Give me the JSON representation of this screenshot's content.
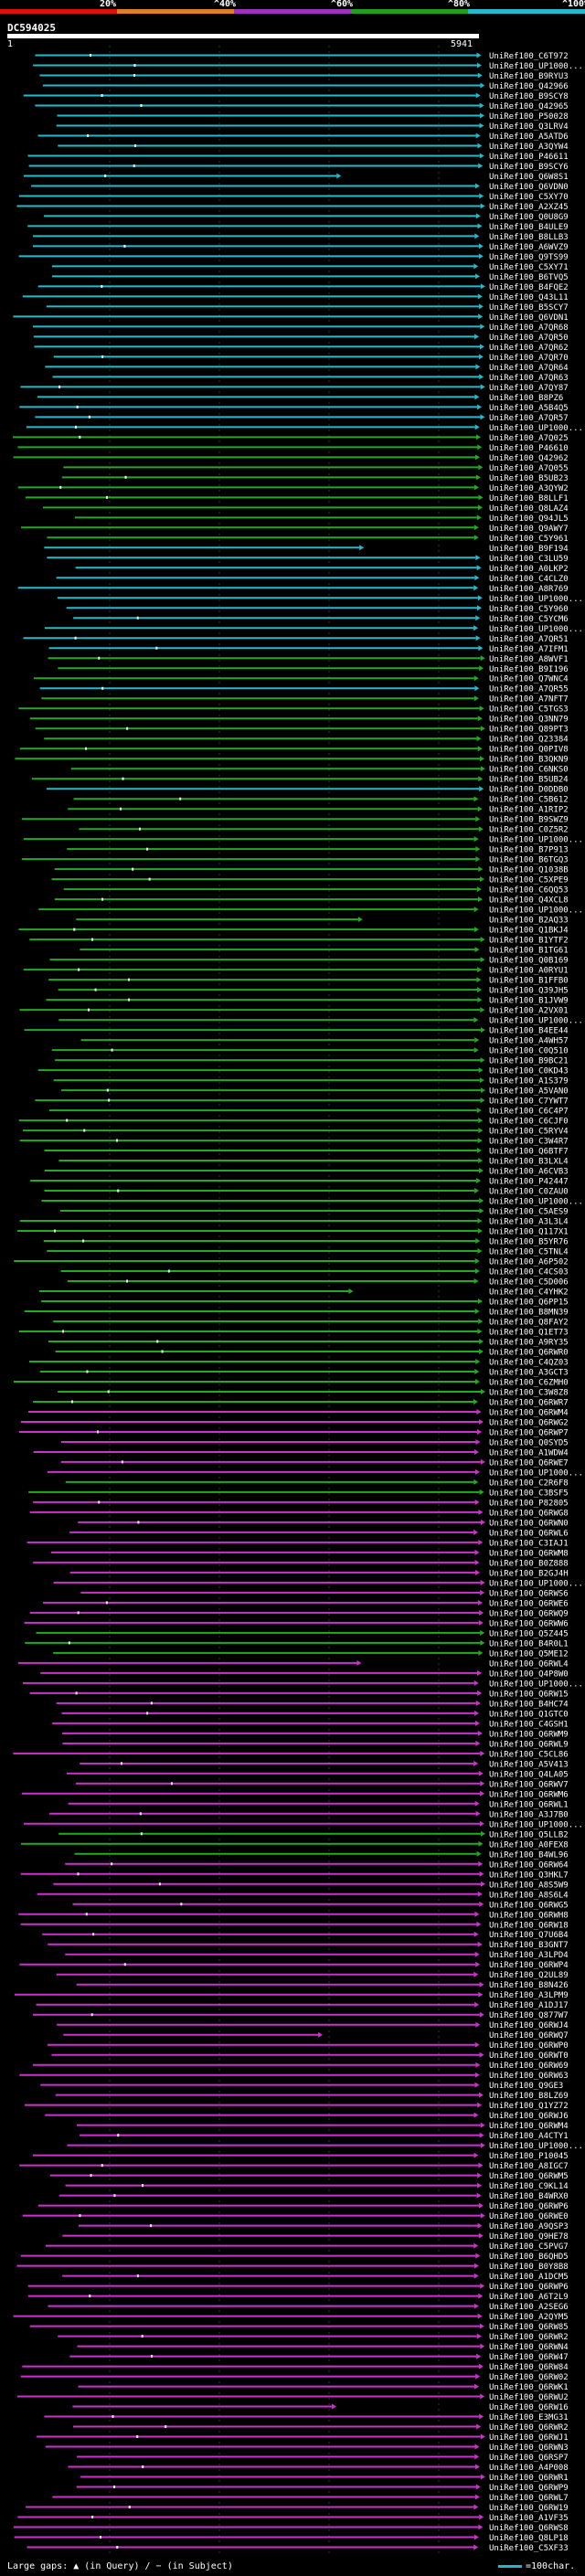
{
  "query": {
    "name": "DC594025",
    "start": "1",
    "end": "5941"
  },
  "scale": [
    {
      "label": "20%",
      "color": "#e01010"
    },
    {
      "label": "^40%",
      "color": "#e08020"
    },
    {
      "label": "^60%",
      "color": "#a030c0"
    },
    {
      "label": "^80%",
      "color": "#20a020"
    },
    {
      "label": "^100%",
      "color": "#22bbcc"
    }
  ],
  "colors": {
    "cyan": "#22bbcc",
    "green": "#22aa22",
    "magenta": "#cc33cc",
    "label": "#ffffff"
  },
  "hits": [
    {
      "id": "UniRef100_C6T972",
      "color": "cyan"
    },
    {
      "id": "UniRef100_UP1000...",
      "color": "cyan"
    },
    {
      "id": "UniRef100_B9RYU3",
      "color": "cyan"
    },
    {
      "id": "UniRef100_Q42966",
      "color": "cyan"
    },
    {
      "id": "UniRef100_B9SCY8",
      "color": "cyan"
    },
    {
      "id": "UniRef100_Q42965",
      "color": "cyan"
    },
    {
      "id": "UniRef100_P50028",
      "color": "cyan"
    },
    {
      "id": "UniRef100_Q3LRV4",
      "color": "cyan"
    },
    {
      "id": "UniRef100_A5ATD6",
      "color": "cyan"
    },
    {
      "id": "UniRef100_A3QYW4",
      "color": "cyan"
    },
    {
      "id": "UniRef100_P46611",
      "color": "cyan"
    },
    {
      "id": "UniRef100_B9SCY6",
      "color": "cyan"
    },
    {
      "id": "UniRef100_Q6W8S1",
      "color": "cyan"
    },
    {
      "id": "UniRef100_Q6VDN0",
      "color": "cyan"
    },
    {
      "id": "UniRef100_C5XY70",
      "color": "cyan"
    },
    {
      "id": "UniRef100_A2XZ45",
      "color": "cyan"
    },
    {
      "id": "UniRef100_Q0U8G9",
      "color": "cyan"
    },
    {
      "id": "UniRef100_B4ULE9",
      "color": "cyan"
    },
    {
      "id": "UniRef100_B8LLB3",
      "color": "cyan"
    },
    {
      "id": "UniRef100_A6WVZ9",
      "color": "cyan"
    },
    {
      "id": "UniRef100_Q9TS99",
      "color": "cyan"
    },
    {
      "id": "UniRef100_C5XY71",
      "color": "cyan"
    },
    {
      "id": "UniRef100_B6TVQ5",
      "color": "cyan"
    },
    {
      "id": "UniRef100_B4FQE2",
      "color": "cyan"
    },
    {
      "id": "UniRef100_Q43L11",
      "color": "cyan"
    },
    {
      "id": "UniRef100_B5SCY7",
      "color": "cyan"
    },
    {
      "id": "UniRef100_Q6VDN1",
      "color": "cyan"
    },
    {
      "id": "UniRef100_A7QR68",
      "color": "cyan"
    },
    {
      "id": "UniRef100_A7QR50",
      "color": "cyan"
    },
    {
      "id": "UniRef100_A7QR62",
      "color": "cyan"
    },
    {
      "id": "UniRef100_A7QR70",
      "color": "cyan"
    },
    {
      "id": "UniRef100_A7QR64",
      "color": "cyan"
    },
    {
      "id": "UniRef100_A7QR63",
      "color": "cyan"
    },
    {
      "id": "UniRef100_A7QY87",
      "color": "cyan"
    },
    {
      "id": "UniRef100_B8PZ6",
      "color": "cyan"
    },
    {
      "id": "UniRef100_A5B4Q5",
      "color": "cyan"
    },
    {
      "id": "UniRef100_A7QR57",
      "color": "cyan"
    },
    {
      "id": "UniRef100_UP1000...",
      "color": "cyan"
    },
    {
      "id": "UniRef100_A7Q025",
      "color": "green"
    },
    {
      "id": "UniRef100_P46610",
      "color": "green"
    },
    {
      "id": "UniRef100_Q42962",
      "color": "green"
    },
    {
      "id": "UniRef100_A7Q055",
      "color": "green"
    },
    {
      "id": "UniRef100_B5UB23",
      "color": "green"
    },
    {
      "id": "UniRef100_A3QYW2",
      "color": "green"
    },
    {
      "id": "UniRef100_B8LLF1",
      "color": "green"
    },
    {
      "id": "UniRef100_Q8LAZ4",
      "color": "green"
    },
    {
      "id": "UniRef100_Q94JL5",
      "color": "green"
    },
    {
      "id": "UniRef100_Q9AWY7",
      "color": "green"
    },
    {
      "id": "UniRef100_C5Y961",
      "color": "green"
    },
    {
      "id": "UniRef100_B9F194",
      "color": "cyan"
    },
    {
      "id": "UniRef100_C3LU59",
      "color": "cyan"
    },
    {
      "id": "UniRef100_A0LKP2",
      "color": "cyan"
    },
    {
      "id": "UniRef100_C4CLZ0",
      "color": "cyan"
    },
    {
      "id": "UniRef100_A8R769",
      "color": "cyan"
    },
    {
      "id": "UniRef100_UP1000...",
      "color": "cyan"
    },
    {
      "id": "UniRef100_C5Y960",
      "color": "cyan"
    },
    {
      "id": "UniRef100_C5YCM6",
      "color": "cyan"
    },
    {
      "id": "UniRef100_UP1000...",
      "color": "cyan"
    },
    {
      "id": "UniRef100_A7QR51",
      "color": "cyan"
    },
    {
      "id": "UniRef100_A7IFM1",
      "color": "cyan"
    },
    {
      "id": "UniRef100_A8WVF1",
      "color": "green"
    },
    {
      "id": "UniRef100_B9I196",
      "color": "green"
    },
    {
      "id": "UniRef100_Q7WNC4",
      "color": "green"
    },
    {
      "id": "UniRef100_A7QR55",
      "color": "cyan"
    },
    {
      "id": "UniRef100_A7NFT7",
      "color": "green"
    },
    {
      "id": "UniRef100_C5TGS3",
      "color": "green"
    },
    {
      "id": "UniRef100_Q3NN79",
      "color": "green"
    },
    {
      "id": "UniRef100_Q89PT3",
      "color": "green"
    },
    {
      "id": "UniRef100_Q23384",
      "color": "green"
    },
    {
      "id": "UniRef100_Q0PIV8",
      "color": "green"
    },
    {
      "id": "UniRef100_B3QKN9",
      "color": "green"
    },
    {
      "id": "UniRef100_C6NKS0",
      "color": "green"
    },
    {
      "id": "UniRef100_B5UB24",
      "color": "green"
    },
    {
      "id": "UniRef100_D0DDB0",
      "color": "cyan"
    },
    {
      "id": "UniRef100_C5B612",
      "color": "green"
    },
    {
      "id": "UniRef100_A1RIP2",
      "color": "green"
    },
    {
      "id": "UniRef100_B9SWZ9",
      "color": "green"
    },
    {
      "id": "UniRef100_C0Z5R2",
      "color": "green"
    },
    {
      "id": "UniRef100_UP1000...",
      "color": "green"
    },
    {
      "id": "UniRef100_B7P913",
      "color": "green"
    },
    {
      "id": "UniRef100_B6TGQ3",
      "color": "green"
    },
    {
      "id": "UniRef100_Q1038B",
      "color": "green"
    },
    {
      "id": "UniRef100_C5XPE9",
      "color": "green"
    },
    {
      "id": "UniRef100_C6QQ53",
      "color": "green"
    },
    {
      "id": "UniRef100_Q4XCL8",
      "color": "green"
    },
    {
      "id": "UniRef100_UP1000...",
      "color": "green"
    },
    {
      "id": "UniRef100_B2AQ33",
      "color": "green"
    },
    {
      "id": "UniRef100_Q1BKJ4",
      "color": "green"
    },
    {
      "id": "UniRef100_B1YTF2",
      "color": "green"
    },
    {
      "id": "UniRef100_B1TG61",
      "color": "green"
    },
    {
      "id": "UniRef100_Q0B169",
      "color": "green"
    },
    {
      "id": "UniRef100_A0RYU1",
      "color": "green"
    },
    {
      "id": "UniRef100_B1FFB0",
      "color": "green"
    },
    {
      "id": "UniRef100_Q39JH5",
      "color": "green"
    },
    {
      "id": "UniRef100_B1JVW9",
      "color": "green"
    },
    {
      "id": "UniRef100_A2VX01",
      "color": "green"
    },
    {
      "id": "UniRef100_UP1000...",
      "color": "green"
    },
    {
      "id": "UniRef100_B4EE44",
      "color": "green"
    },
    {
      "id": "UniRef100_A4WH57",
      "color": "green"
    },
    {
      "id": "UniRef100_C0Q510",
      "color": "green"
    },
    {
      "id": "UniRef100_B9BC21",
      "color": "green"
    },
    {
      "id": "UniRef100_C0KD43",
      "color": "green"
    },
    {
      "id": "UniRef100_A1S379",
      "color": "green"
    },
    {
      "id": "UniRef100_A5VAN0",
      "color": "green"
    },
    {
      "id": "UniRef100_C7YWT7",
      "color": "green"
    },
    {
      "id": "UniRef100_C6C4P7",
      "color": "green"
    },
    {
      "id": "UniRef100_C6CJF0",
      "color": "green"
    },
    {
      "id": "UniRef100_C5RYV4",
      "color": "green"
    },
    {
      "id": "UniRef100_C3W4R7",
      "color": "green"
    },
    {
      "id": "UniRef100_Q6BTF7",
      "color": "green"
    },
    {
      "id": "UniRef100_B3LXL4",
      "color": "green"
    },
    {
      "id": "UniRef100_A6CVB3",
      "color": "green"
    },
    {
      "id": "UniRef100_P42447",
      "color": "green"
    },
    {
      "id": "UniRef100_C0ZAU0",
      "color": "green"
    },
    {
      "id": "UniRef100_UP1000...",
      "color": "green"
    },
    {
      "id": "UniRef100_C5AES9",
      "color": "green"
    },
    {
      "id": "UniRef100_A3L3L4",
      "color": "green"
    },
    {
      "id": "UniRef100_Q117X1",
      "color": "green"
    },
    {
      "id": "UniRef100_B5YR76",
      "color": "green"
    },
    {
      "id": "UniRef100_C5TNL4",
      "color": "green"
    },
    {
      "id": "UniRef100_A6P502",
      "color": "green"
    },
    {
      "id": "UniRef100_C4CS03",
      "color": "green"
    },
    {
      "id": "UniRef100_C5D006",
      "color": "green"
    },
    {
      "id": "UniRef100_C4YHK2",
      "color": "green"
    },
    {
      "id": "UniRef100_Q6PP15",
      "color": "green"
    },
    {
      "id": "UniRef100_B8MN39",
      "color": "green"
    },
    {
      "id": "UniRef100_Q8FAY2",
      "color": "green"
    },
    {
      "id": "UniRef100_Q1ET73",
      "color": "green"
    },
    {
      "id": "UniRef100_A9RY35",
      "color": "green"
    },
    {
      "id": "UniRef100_Q6RWR0",
      "color": "green"
    },
    {
      "id": "UniRef100_C4QZ03",
      "color": "green"
    },
    {
      "id": "UniRef100_A3GCT3",
      "color": "green"
    },
    {
      "id": "UniRef100_C6ZMH0",
      "color": "green"
    },
    {
      "id": "UniRef100_C3W8Z8",
      "color": "green"
    },
    {
      "id": "UniRef100_Q6RWR7",
      "color": "green"
    },
    {
      "id": "UniRef100_Q6RWM4",
      "color": "magenta"
    },
    {
      "id": "UniRef100_Q6RWG2",
      "color": "magenta"
    },
    {
      "id": "UniRef100_Q6RWP7",
      "color": "magenta"
    },
    {
      "id": "UniRef100_Q0SYD5",
      "color": "magenta"
    },
    {
      "id": "UniRef100_A1WDW4",
      "color": "magenta"
    },
    {
      "id": "UniRef100_Q6RWE7",
      "color": "magenta"
    },
    {
      "id": "UniRef100_UP1000...",
      "color": "magenta"
    },
    {
      "id": "UniRef100_C2R6F8",
      "color": "green"
    },
    {
      "id": "UniRef100_C3BSF5",
      "color": "green"
    },
    {
      "id": "UniRef100_P82805",
      "color": "magenta"
    },
    {
      "id": "UniRef100_Q6RWG8",
      "color": "magenta"
    },
    {
      "id": "UniRef100_Q6RWN0",
      "color": "magenta"
    },
    {
      "id": "UniRef100_Q6RWL6",
      "color": "magenta"
    },
    {
      "id": "UniRef100_C3IAJ1",
      "color": "magenta"
    },
    {
      "id": "UniRef100_Q6RWM8",
      "color": "magenta"
    },
    {
      "id": "UniRef100_B0Z888",
      "color": "magenta"
    },
    {
      "id": "UniRef100_B2GJ4H",
      "color": "magenta"
    },
    {
      "id": "UniRef100_UP1000...",
      "color": "magenta"
    },
    {
      "id": "UniRef100_Q6RWS6",
      "color": "magenta"
    },
    {
      "id": "UniRef100_Q6RWE6",
      "color": "magenta"
    },
    {
      "id": "UniRef100_Q6RWQ9",
      "color": "magenta"
    },
    {
      "id": "UniRef100_Q6RWW6",
      "color": "magenta"
    },
    {
      "id": "UniRef100_Q5Z445",
      "color": "green"
    },
    {
      "id": "UniRef100_B4R0L1",
      "color": "green"
    },
    {
      "id": "UniRef100_Q5ME12",
      "color": "green"
    },
    {
      "id": "UniRef100_Q6RWL4",
      "color": "magenta"
    },
    {
      "id": "UniRef100_Q4P8W0",
      "color": "magenta"
    },
    {
      "id": "UniRef100_UP1000...",
      "color": "magenta"
    },
    {
      "id": "UniRef100_Q6RW15",
      "color": "magenta"
    },
    {
      "id": "UniRef100_B4HC74",
      "color": "magenta"
    },
    {
      "id": "UniRef100_Q1GTC0",
      "color": "magenta"
    },
    {
      "id": "UniRef100_C4GSH1",
      "color": "magenta"
    },
    {
      "id": "UniRef100_Q6RWM9",
      "color": "magenta"
    },
    {
      "id": "UniRef100_Q6RWL9",
      "color": "magenta"
    },
    {
      "id": "UniRef100_C5CL86",
      "color": "magenta"
    },
    {
      "id": "UniRef100_A5V413",
      "color": "magenta"
    },
    {
      "id": "UniRef100_Q4LA05",
      "color": "magenta"
    },
    {
      "id": "UniRef100_Q6RWV7",
      "color": "magenta"
    },
    {
      "id": "UniRef100_Q6RWM6",
      "color": "magenta"
    },
    {
      "id": "UniRef100_Q6RWL1",
      "color": "magenta"
    },
    {
      "id": "UniRef100_A3J7B0",
      "color": "magenta"
    },
    {
      "id": "UniRef100_UP1000...",
      "color": "magenta"
    },
    {
      "id": "UniRef100_Q5LLB2",
      "color": "green"
    },
    {
      "id": "UniRef100_A0FEX8",
      "color": "green"
    },
    {
      "id": "UniRef100_B4WL96",
      "color": "green"
    },
    {
      "id": "UniRef100_Q6RW64",
      "color": "magenta"
    },
    {
      "id": "UniRef100_Q3HKL7",
      "color": "magenta"
    },
    {
      "id": "UniRef100_A8S5W9",
      "color": "magenta"
    },
    {
      "id": "UniRef100_A8S6L4",
      "color": "magenta"
    },
    {
      "id": "UniRef100_Q6RWG5",
      "color": "magenta"
    },
    {
      "id": "UniRef100_Q6RWH8",
      "color": "magenta"
    },
    {
      "id": "UniRef100_Q6RW18",
      "color": "magenta"
    },
    {
      "id": "UniRef100_Q7U6B4",
      "color": "magenta"
    },
    {
      "id": "UniRef100_B3GNT7",
      "color": "magenta"
    },
    {
      "id": "UniRef100_A3LPD4",
      "color": "magenta"
    },
    {
      "id": "UniRef100_Q6RWP4",
      "color": "magenta"
    },
    {
      "id": "UniRef100_Q2UL89",
      "color": "magenta"
    },
    {
      "id": "UniRef100_B8N426",
      "color": "magenta"
    },
    {
      "id": "UniRef100_A3LPM9",
      "color": "magenta"
    },
    {
      "id": "UniRef100_A1DJ17",
      "color": "magenta"
    },
    {
      "id": "UniRef100_Q877W7",
      "color": "magenta"
    },
    {
      "id": "UniRef100_Q6RWJ4",
      "color": "magenta"
    },
    {
      "id": "UniRef100_Q6RWQ7",
      "color": "magenta"
    },
    {
      "id": "UniRef100_Q6RWP0",
      "color": "magenta"
    },
    {
      "id": "UniRef100_Q6RWT0",
      "color": "magenta"
    },
    {
      "id": "UniRef100_Q6RW69",
      "color": "magenta"
    },
    {
      "id": "UniRef100_Q6RW63",
      "color": "magenta"
    },
    {
      "id": "UniRef100_Q9GE3",
      "color": "magenta"
    },
    {
      "id": "UniRef100_B8LZ69",
      "color": "magenta"
    },
    {
      "id": "UniRef100_Q1YZ72",
      "color": "magenta"
    },
    {
      "id": "UniRef100_Q6RWJ6",
      "color": "magenta"
    },
    {
      "id": "UniRef100_Q6RWM4",
      "color": "magenta"
    },
    {
      "id": "UniRef100_A4CTY1",
      "color": "magenta"
    },
    {
      "id": "UniRef100_UP1000...",
      "color": "magenta"
    },
    {
      "id": "UniRef100_P10045",
      "color": "magenta"
    },
    {
      "id": "UniRef100_A8IGC7",
      "color": "magenta"
    },
    {
      "id": "UniRef100_Q6RWM5",
      "color": "magenta"
    },
    {
      "id": "UniRef100_C9KL14",
      "color": "magenta"
    },
    {
      "id": "UniRef100_B4WRX0",
      "color": "magenta"
    },
    {
      "id": "UniRef100_Q6RWP6",
      "color": "magenta"
    },
    {
      "id": "UniRef100_Q6RWE0",
      "color": "magenta"
    },
    {
      "id": "UniRef100_A9QSP3",
      "color": "magenta"
    },
    {
      "id": "UniRef100_Q9HE78",
      "color": "magenta"
    },
    {
      "id": "UniRef100_C5PVG7",
      "color": "magenta"
    },
    {
      "id": "UniRef100_B6QHD5",
      "color": "magenta"
    },
    {
      "id": "UniRef100_B0Y8B8",
      "color": "magenta"
    },
    {
      "id": "UniRef100_A1DCM5",
      "color": "magenta"
    },
    {
      "id": "UniRef100_Q6RWP6",
      "color": "magenta"
    },
    {
      "id": "UniRef100_A6T2L9",
      "color": "magenta"
    },
    {
      "id": "UniRef100_A2SEG6",
      "color": "magenta"
    },
    {
      "id": "UniRef100_A2QYM5",
      "color": "magenta"
    },
    {
      "id": "UniRef100_Q6RW85",
      "color": "magenta"
    },
    {
      "id": "UniRef100_Q6RWR2",
      "color": "magenta"
    },
    {
      "id": "UniRef100_Q6RWN4",
      "color": "magenta"
    },
    {
      "id": "UniRef100_Q6RW47",
      "color": "magenta"
    },
    {
      "id": "UniRef100_Q6RW84",
      "color": "magenta"
    },
    {
      "id": "UniRef100_Q6RW02",
      "color": "magenta"
    },
    {
      "id": "UniRef100_Q6RWK1",
      "color": "magenta"
    },
    {
      "id": "UniRef100_Q6RWU2",
      "color": "magenta"
    },
    {
      "id": "UniRef100_Q6RW16",
      "color": "magenta"
    },
    {
      "id": "UniRef100_E3MG31",
      "color": "magenta"
    },
    {
      "id": "UniRef100_Q6RWR2",
      "color": "magenta"
    },
    {
      "id": "UniRef100_Q6RWJ1",
      "color": "magenta"
    },
    {
      "id": "UniRef100_Q6RWN3",
      "color": "magenta"
    },
    {
      "id": "UniRef100_Q6RSP7",
      "color": "magenta"
    },
    {
      "id": "UniRef100_A4P008",
      "color": "magenta"
    },
    {
      "id": "UniRef100_Q6RWR1",
      "color": "magenta"
    },
    {
      "id": "UniRef100_Q6RWP9",
      "color": "magenta"
    },
    {
      "id": "UniRef100_Q6RWL7",
      "color": "magenta"
    },
    {
      "id": "UniRef100_Q6RW19",
      "color": "magenta"
    },
    {
      "id": "UniRef100_A1VF35",
      "color": "magenta"
    },
    {
      "id": "UniRef100_Q6RWS8",
      "color": "magenta"
    },
    {
      "id": "UniRef100_Q8LP18",
      "color": "magenta"
    },
    {
      "id": "UniRef100_C5XF33",
      "color": "magenta"
    }
  ],
  "legend": {
    "gaps_text": "Large gaps: ▲ (in Query) / − (in Subject)",
    "scale_text": "=100char."
  }
}
